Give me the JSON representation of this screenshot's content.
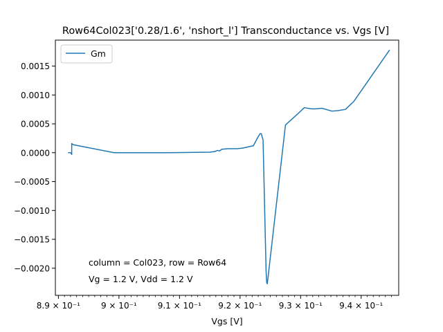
{
  "chart_data": {
    "type": "line",
    "title": "Row64Col023['0.28/1.6', 'nshort_l'] Transconductance vs. Vgs [V]",
    "xlabel": "Vgs [V]",
    "ylabel": "",
    "xlim": [
      0.8895,
      0.9462
    ],
    "ylim": [
      -0.00247,
      0.00195
    ],
    "x_ticks": [
      0.89,
      0.9,
      0.91,
      0.92,
      0.93,
      0.94
    ],
    "x_tick_labels": [
      "8.9 × 10⁻¹",
      "9 × 10⁻¹",
      "9.1 × 10⁻¹",
      "9.2 × 10⁻¹",
      "9.3 × 10⁻¹",
      "9.4 × 10⁻¹"
    ],
    "y_ticks": [
      0.0015,
      0.001,
      0.0005,
      0.0,
      -0.0005,
      -0.001,
      -0.0015,
      -0.002
    ],
    "y_tick_labels": [
      "0.0015",
      "0.0010",
      "0.0005",
      "0.0000",
      "−0.0005",
      "−0.0010",
      "−0.0015",
      "−0.0020"
    ],
    "grid": false,
    "legend": {
      "position": "top-left",
      "entries": [
        "Gm"
      ]
    },
    "annotations": [
      "column = Col023, row = Row64",
      "Vg = 1.2 V, Vdd = 1.2 V"
    ],
    "series": [
      {
        "name": "Gm",
        "color": "#1f77b4",
        "x": [
          0.8916,
          0.892,
          0.8921,
          0.8922,
          0.8922,
          0.8924,
          0.8992,
          0.908,
          0.915,
          0.9158,
          0.9163,
          0.9166,
          0.917,
          0.918,
          0.9195,
          0.9204,
          0.9222,
          0.9229,
          0.9233,
          0.9235,
          0.9238,
          0.9243,
          0.9244,
          0.9245,
          0.9275,
          0.9295,
          0.9306,
          0.9318,
          0.9325,
          0.9335,
          0.9352,
          0.9362,
          0.9374,
          0.9388,
          0.9447
        ],
        "y": [
          0.0,
          0.0,
          -1e-05,
          -3e-05,
          0.00016,
          0.00014,
          0.0,
          0.0,
          1e-05,
          2e-05,
          4e-05,
          3e-05,
          6e-05,
          7e-05,
          7e-05,
          8e-05,
          0.00012,
          0.00026,
          0.00033,
          0.00033,
          0.00022,
          -0.00205,
          -0.00225,
          -0.00227,
          0.00048,
          0.00067,
          0.00078,
          0.00076,
          0.00076,
          0.00077,
          0.00072,
          0.00073,
          0.00075,
          0.00089,
          0.00178
        ]
      }
    ]
  }
}
